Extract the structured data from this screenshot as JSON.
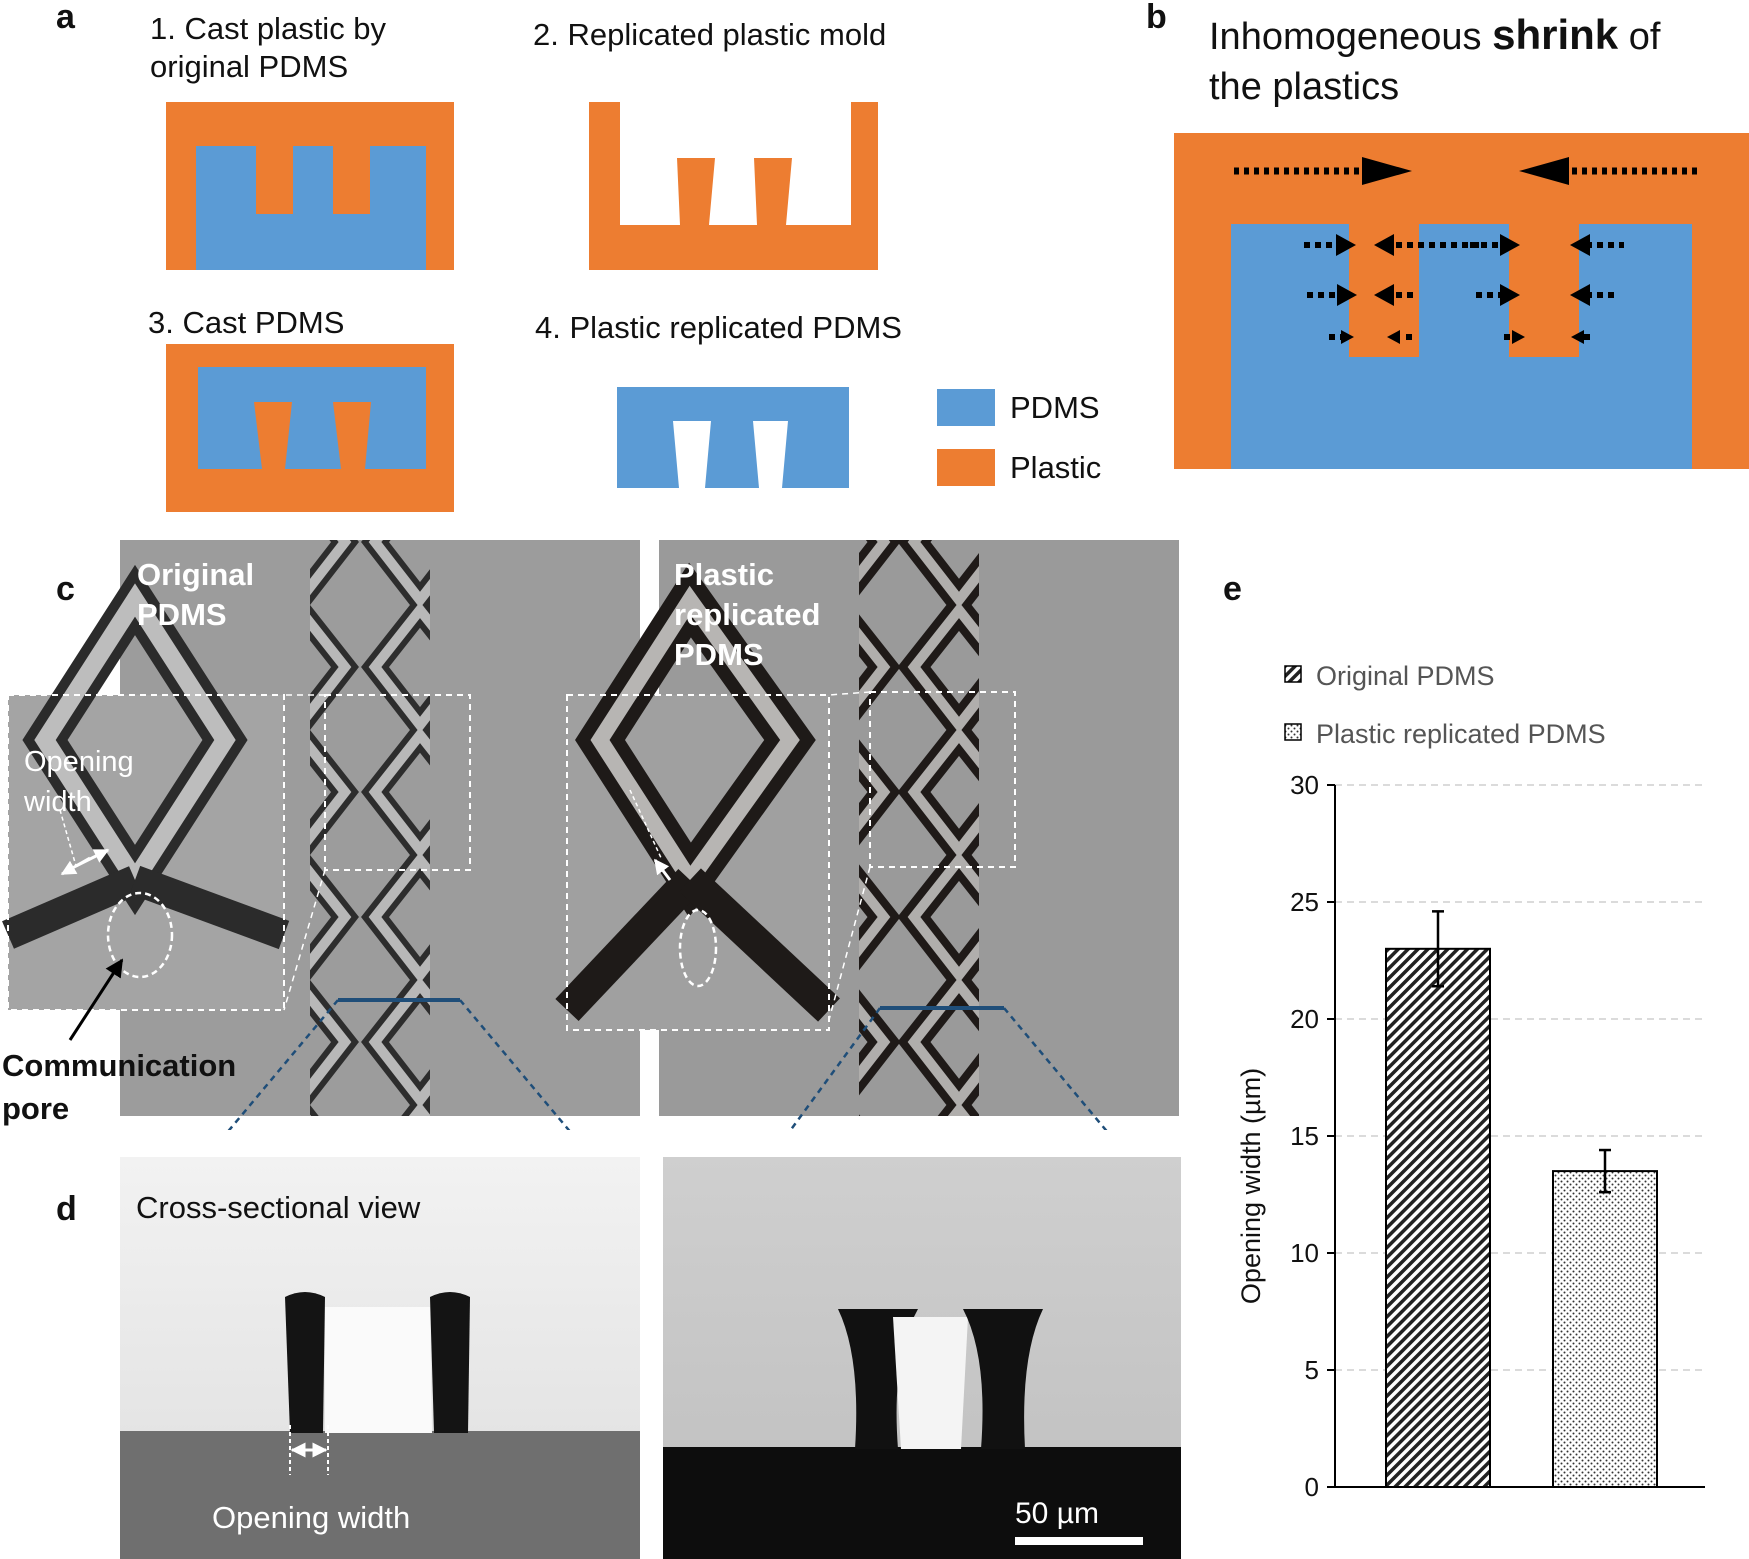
{
  "panel_labels": {
    "a": "a",
    "b": "b",
    "c": "c",
    "d": "d",
    "e": "e"
  },
  "panel_a": {
    "step1": "1. Cast plastic by original PDMS",
    "step2": "2. Replicated plastic mold",
    "step3": "3. Cast PDMS",
    "step4": "4. Plastic replicated PDMS",
    "legend_pdms": "PDMS",
    "legend_plastic": "Plastic"
  },
  "panel_b": {
    "title_before": "Inhomogeneous ",
    "title_bold": "shrink",
    "title_after": " of",
    "title_line2": "the plastics"
  },
  "panel_c": {
    "left_label_1": "Original",
    "left_label_2": "PDMS",
    "right_label_1": "Plastic",
    "right_label_2": "replicated",
    "right_label_3": "PDMS",
    "inset_label_1": "Opening",
    "inset_label_2": "width",
    "pore_label_1": "Communication",
    "pore_label_2": "pore"
  },
  "panel_d": {
    "view_label": "Cross-sectional view",
    "opening_label": "Opening width",
    "scale_label": "50 µm"
  },
  "colors": {
    "pdms": "#5b9bd5",
    "plastic": "#ed7d31",
    "dashed_line": "#1f4e79"
  },
  "chart_data": {
    "type": "bar",
    "categories": [
      "Original PDMS",
      "Plastic replicated PDMS"
    ],
    "values": [
      23.0,
      13.5
    ],
    "errors": [
      1.6,
      0.9
    ],
    "patterns": [
      "diagonal-hatch",
      "dots"
    ],
    "ylabel": "Opening width (µm)",
    "xlabel": "",
    "ylim": [
      0,
      30
    ],
    "yticks": [
      0,
      5,
      10,
      15,
      20,
      25,
      30
    ],
    "legend": [
      "Original PDMS",
      "Plastic replicated PDMS"
    ],
    "legend_position": "top",
    "grid": "horizontal dashed"
  }
}
